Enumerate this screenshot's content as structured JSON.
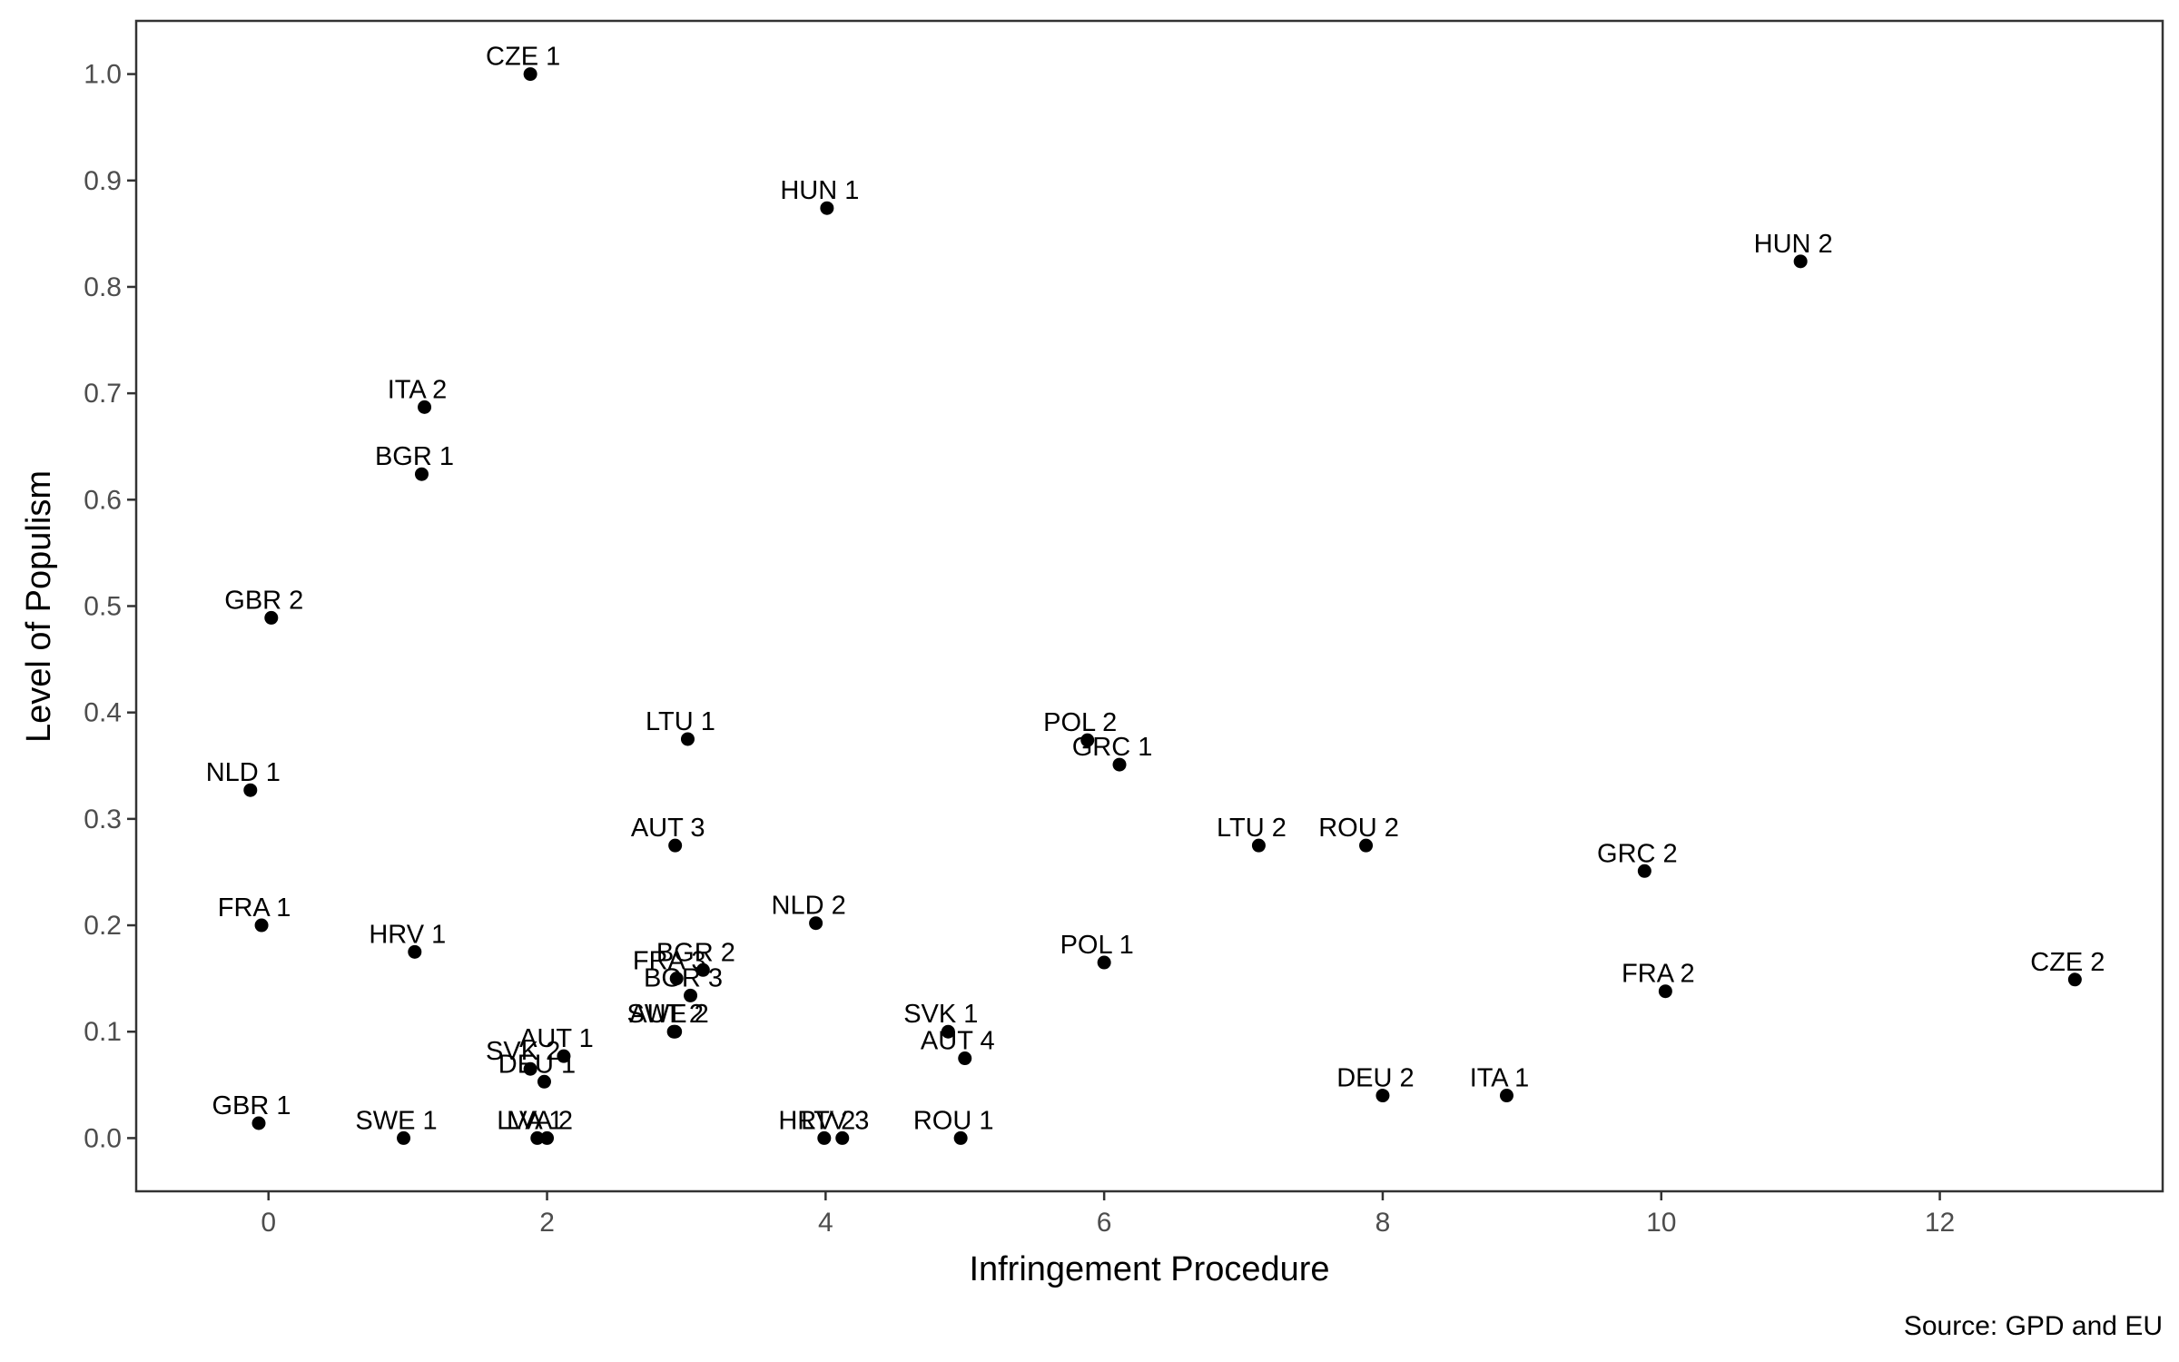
{
  "chart_data": {
    "type": "scatter",
    "xlabel": "Infringement Procedure",
    "ylabel": "Level of Populism",
    "caption": "Source: GPD and EU",
    "xlim": [
      -0.95,
      13.6
    ],
    "ylim": [
      -0.05,
      1.05
    ],
    "x_ticks": [
      0,
      2,
      4,
      6,
      8,
      10,
      12
    ],
    "x_tick_labels": [
      "0",
      "2",
      "4",
      "6",
      "8",
      "10",
      "12"
    ],
    "y_ticks": [
      0.0,
      0.1,
      0.2,
      0.3,
      0.4,
      0.5,
      0.6,
      0.7,
      0.8,
      0.9,
      1.0
    ],
    "y_tick_labels": [
      "0.0",
      "0.1",
      "0.2",
      "0.3",
      "0.4",
      "0.5",
      "0.6",
      "0.7",
      "0.8",
      "0.9",
      "1.0"
    ],
    "grid": false,
    "legend": "none",
    "point_color": "#000000",
    "points": [
      {
        "label": "CZE 1",
        "x": 1.88,
        "y": 1.0
      },
      {
        "label": "HUN 1",
        "x": 4.01,
        "y": 0.874
      },
      {
        "label": "HUN 2",
        "x": 11.0,
        "y": 0.824
      },
      {
        "label": "ITA 2",
        "x": 1.12,
        "y": 0.687
      },
      {
        "label": "BGR 1",
        "x": 1.1,
        "y": 0.624
      },
      {
        "label": "GBR 2",
        "x": 0.02,
        "y": 0.489
      },
      {
        "label": "LTU 1",
        "x": 3.01,
        "y": 0.375
      },
      {
        "label": "POL 2",
        "x": 5.88,
        "y": 0.374
      },
      {
        "label": "GRC 1",
        "x": 6.11,
        "y": 0.351
      },
      {
        "label": "NLD 1",
        "x": -0.13,
        "y": 0.327
      },
      {
        "label": "AUT 3",
        "x": 2.92,
        "y": 0.275
      },
      {
        "label": "LTU 2",
        "x": 7.11,
        "y": 0.275
      },
      {
        "label": "ROU 2",
        "x": 7.88,
        "y": 0.275
      },
      {
        "label": "GRC 2",
        "x": 9.88,
        "y": 0.251
      },
      {
        "label": "NLD 2",
        "x": 3.93,
        "y": 0.202
      },
      {
        "label": "FRA 1",
        "x": -0.05,
        "y": 0.2
      },
      {
        "label": "HRV 1",
        "x": 1.05,
        "y": 0.175
      },
      {
        "label": "POL 1",
        "x": 6.0,
        "y": 0.165
      },
      {
        "label": "BGR 2",
        "x": 3.12,
        "y": 0.158
      },
      {
        "label": "FRA 3",
        "x": 2.93,
        "y": 0.15
      },
      {
        "label": "CZE 2",
        "x": 12.97,
        "y": 0.149
      },
      {
        "label": "FRA 2",
        "x": 10.03,
        "y": 0.138
      },
      {
        "label": "BGR 3",
        "x": 3.03,
        "y": 0.134
      },
      {
        "label": "AUT 2",
        "x": 2.91,
        "y": 0.1
      },
      {
        "label": "SWE 2",
        "x": 2.92,
        "y": 0.1
      },
      {
        "label": "SVK 1",
        "x": 4.88,
        "y": 0.1
      },
      {
        "label": "AUT 1",
        "x": 2.12,
        "y": 0.077
      },
      {
        "label": "AUT 4",
        "x": 5.0,
        "y": 0.075
      },
      {
        "label": "SVK 2",
        "x": 1.88,
        "y": 0.065
      },
      {
        "label": "DEU 1",
        "x": 1.98,
        "y": 0.053
      },
      {
        "label": "DEU 2",
        "x": 8.0,
        "y": 0.04
      },
      {
        "label": "ITA 1",
        "x": 8.89,
        "y": 0.04
      },
      {
        "label": "GBR 1",
        "x": -0.07,
        "y": 0.014
      },
      {
        "label": "SWE 1",
        "x": 0.97,
        "y": 0.0
      },
      {
        "label": "LVA 1",
        "x": 1.93,
        "y": 0.0
      },
      {
        "label": "LVA 2",
        "x": 2.0,
        "y": 0.0
      },
      {
        "label": "HRV 2",
        "x": 3.99,
        "y": 0.0
      },
      {
        "label": "LTV 3",
        "x": 4.12,
        "y": 0.0
      },
      {
        "label": "ROU 1",
        "x": 4.97,
        "y": 0.0
      }
    ]
  }
}
